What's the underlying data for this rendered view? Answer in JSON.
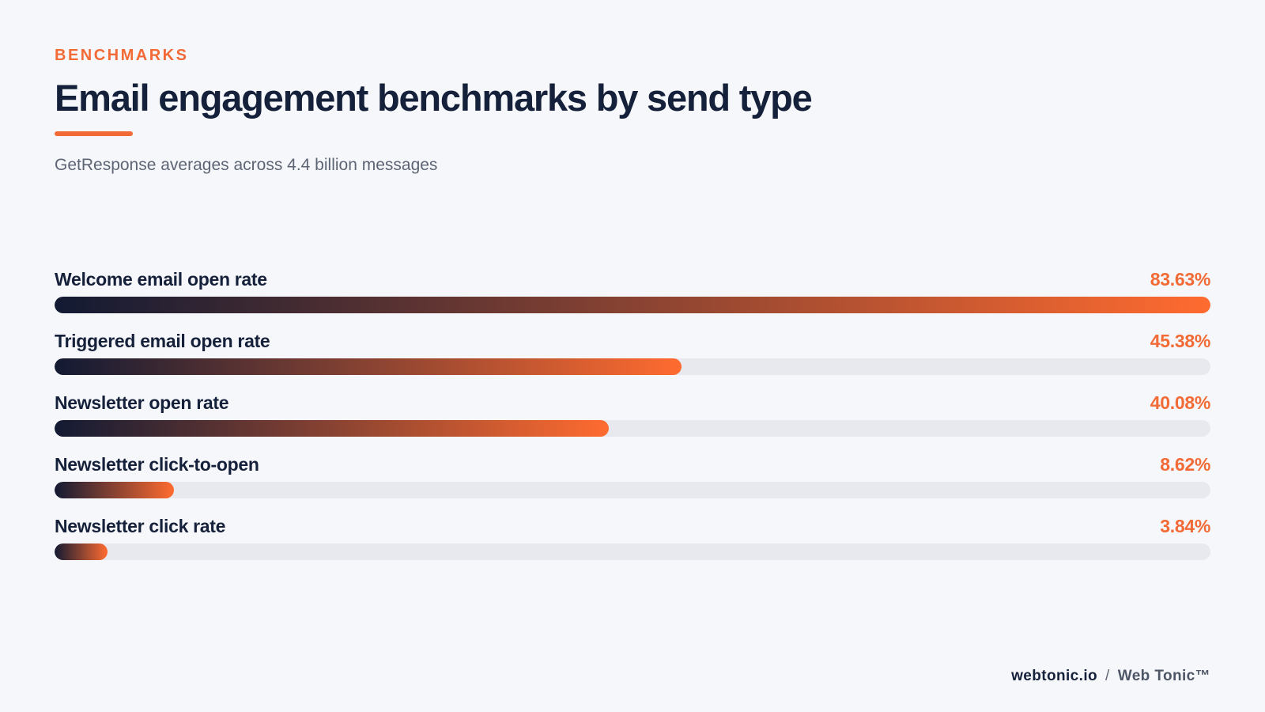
{
  "header": {
    "eyebrow": "BENCHMARKS",
    "title": "Email engagement benchmarks by send type",
    "subtitle": "GetResponse averages across 4.4 billion messages"
  },
  "chart_data": {
    "type": "bar",
    "orientation": "horizontal",
    "scale_max": 83.63,
    "categories": [
      "Welcome email open rate",
      "Triggered email open rate",
      "Newsletter open rate",
      "Newsletter click-to-open",
      "Newsletter click rate"
    ],
    "values": [
      83.63,
      45.38,
      40.08,
      8.62,
      3.84
    ],
    "data_labels": [
      "83.63%",
      "45.38%",
      "40.08%",
      "8.62%",
      "3.84%"
    ]
  },
  "footer": {
    "site": "webtonic.io",
    "separator": "/",
    "brand": "Web Tonic™"
  },
  "colors": {
    "accent": "#f26a36",
    "navy": "#15203a",
    "gradient_start": "#121a33",
    "gradient_end": "#ff6b30",
    "track": "#e7e9ee",
    "background": "#f6f7fa"
  }
}
